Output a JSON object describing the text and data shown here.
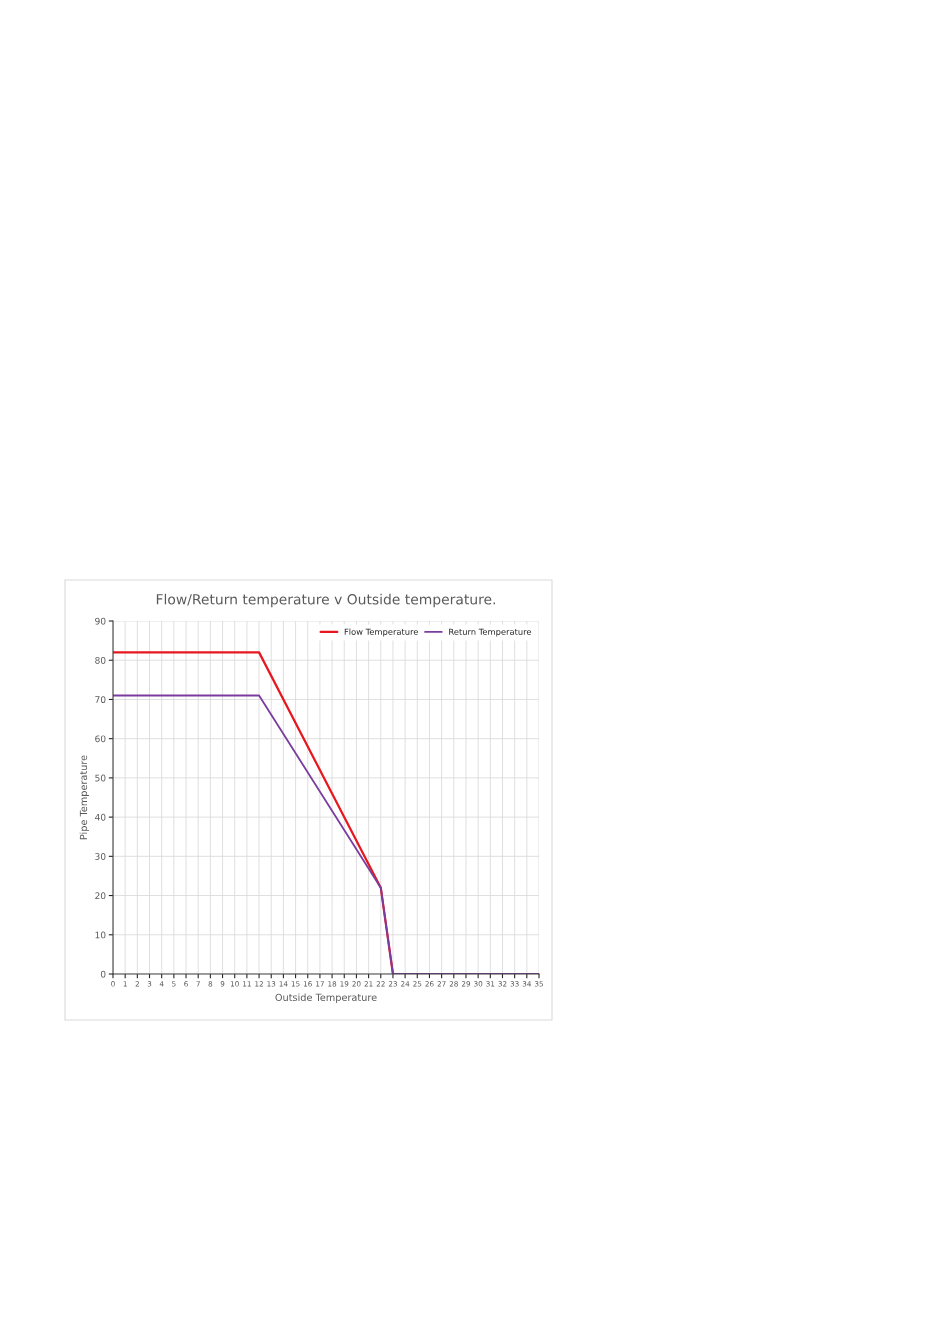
{
  "chart_data": {
    "type": "line",
    "title": "Flow/Return temperature v Outside temperature.",
    "xlabel": "Outside Temperature",
    "ylabel": "Pipe Temperature",
    "series": [
      {
        "name": "Flow Temperature",
        "color": "#e8171e",
        "x": [
          0,
          12,
          22,
          23,
          35
        ],
        "values": [
          82,
          82,
          22,
          0,
          0
        ]
      },
      {
        "name": "Return Temperature",
        "color": "#7a3c9e",
        "x": [
          0,
          12,
          22,
          23,
          35
        ],
        "values": [
          71,
          71,
          22,
          0,
          0
        ]
      }
    ],
    "xlim": [
      0,
      35
    ],
    "xticks": [
      0,
      1,
      2,
      3,
      4,
      5,
      6,
      7,
      8,
      9,
      10,
      11,
      12,
      13,
      14,
      15,
      16,
      17,
      18,
      19,
      20,
      21,
      22,
      23,
      24,
      25,
      26,
      27,
      28,
      29,
      30,
      31,
      32,
      33,
      34,
      35
    ],
    "ylim": [
      0,
      90
    ],
    "yticks": [
      0,
      10,
      20,
      30,
      40,
      50,
      60,
      70,
      80,
      90
    ],
    "grid": true,
    "legend": "top right",
    "marker": "none",
    "line_style": "solid"
  }
}
